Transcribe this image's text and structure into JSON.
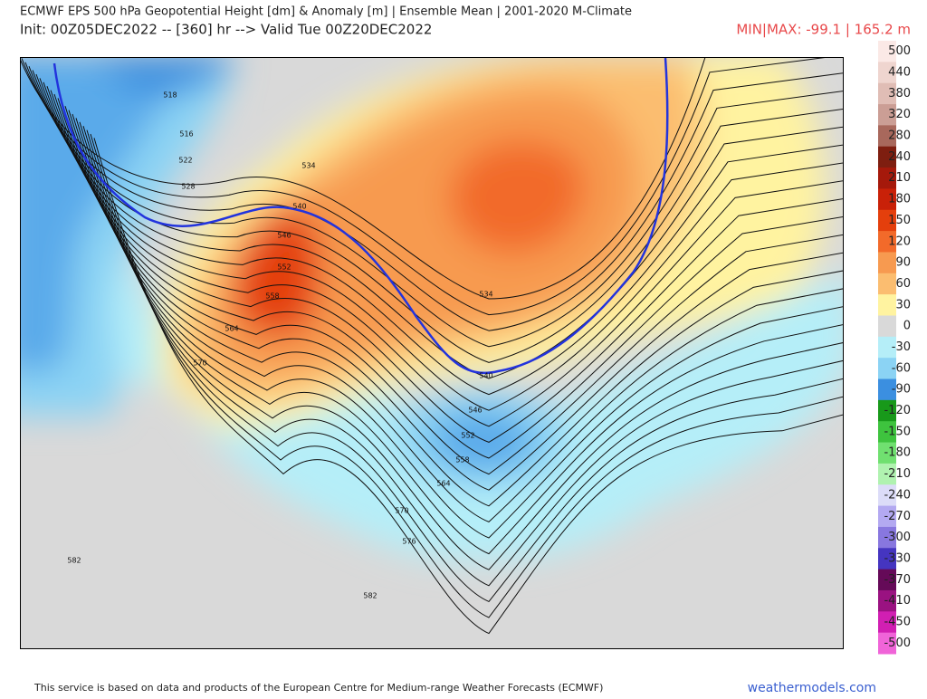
{
  "header": {
    "title": "ECMWF EPS 500 hPa Geopotential Height [dm] & Anomaly [m] | Ensemble Mean | 2001-2020 M-Climate",
    "subtitle": "Init: 00Z05DEC2022 -- [360] hr --> Valid Tue 00Z20DEC2022",
    "minmax": "MIN|MAX: -99.1 | 165.2 m"
  },
  "colorbar": [
    {
      "label": 500,
      "color": "#fbe9e6"
    },
    {
      "label": 440,
      "color": "#efd5cf"
    },
    {
      "label": 380,
      "color": "#e0bdb5"
    },
    {
      "label": 320,
      "color": "#cb9e95"
    },
    {
      "label": 280,
      "color": "#a8685c"
    },
    {
      "label": 240,
      "color": "#7e1e10"
    },
    {
      "label": 210,
      "color": "#a5190b"
    },
    {
      "label": 180,
      "color": "#c92108"
    },
    {
      "label": 150,
      "color": "#e43f0c"
    },
    {
      "label": 120,
      "color": "#f26a2a"
    },
    {
      "label": 90,
      "color": "#f79a50"
    },
    {
      "label": 60,
      "color": "#fbbd70"
    },
    {
      "label": 30,
      "color": "#fff3a0"
    },
    {
      "label": 0,
      "color": "#d9d9d9"
    },
    {
      "label": -30,
      "color": "#b5eef8"
    },
    {
      "label": -60,
      "color": "#8bd3f4"
    },
    {
      "label": -90,
      "color": "#3b8fe0"
    },
    {
      "label": -120,
      "color": "#18991a"
    },
    {
      "label": -150,
      "color": "#3ec33e"
    },
    {
      "label": -180,
      "color": "#70e070"
    },
    {
      "label": -210,
      "color": "#b0f2b0"
    },
    {
      "label": -240,
      "color": "#dcdcf8"
    },
    {
      "label": -270,
      "color": "#b3a9f1"
    },
    {
      "label": -300,
      "color": "#8877df"
    },
    {
      "label": -330,
      "color": "#4535c0"
    },
    {
      "label": -370,
      "color": "#650a58"
    },
    {
      "label": -410,
      "color": "#9a1281"
    },
    {
      "label": -450,
      "color": "#d11fb2"
    },
    {
      "label": -500,
      "color": "#f064d8"
    }
  ],
  "contour_labels": [
    518,
    516,
    522,
    528,
    534,
    540,
    546,
    552,
    558,
    564,
    570,
    534,
    540,
    546,
    552,
    558,
    564,
    570,
    576,
    582,
    582
  ],
  "footer": {
    "note": "This service is based on data and products of the European Centre for Medium-range Weather Forecasts (ECMWF)",
    "site": "weathermodels.com"
  }
}
